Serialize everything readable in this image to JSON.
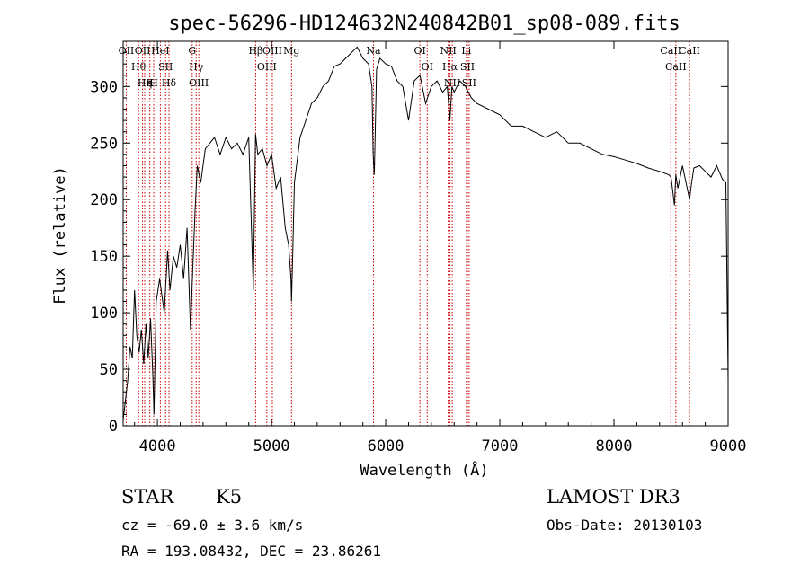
{
  "chart_data": {
    "type": "line",
    "title": "spec-56296-HD124632N240842B01_sp08-089.fits",
    "xlabel": "Wavelength (Å)",
    "ylabel": "Flux (relative)",
    "xlim": [
      3700,
      9000
    ],
    "ylim": [
      0,
      340
    ],
    "x_ticks": [
      4000,
      5000,
      6000,
      7000,
      8000,
      9000
    ],
    "y_ticks": [
      0,
      50,
      100,
      150,
      200,
      250,
      300
    ],
    "grid": false,
    "legend": "none",
    "line_color": "#000000",
    "marker_color": "#cc0000",
    "series": [
      {
        "x": [
          3700,
          3740,
          3760,
          3780,
          3800,
          3820,
          3840,
          3860,
          3880,
          3900,
          3920,
          3940,
          3960,
          3970,
          3990,
          4020,
          4060,
          4090,
          4110,
          4140,
          4170,
          4200,
          4230,
          4260,
          4290,
          4310,
          4330,
          4350,
          4380,
          4420,
          4460,
          4500,
          4550,
          4600,
          4650,
          4700,
          4750,
          4800,
          4840,
          4860,
          4880,
          4920,
          4960,
          5000,
          5040,
          5080,
          5120,
          5150,
          5170,
          5175,
          5185,
          5200,
          5250,
          5300,
          5350,
          5400,
          5450,
          5500,
          5550,
          5600,
          5650,
          5700,
          5750,
          5800,
          5850,
          5880,
          5890,
          5900,
          5920,
          5950,
          6000,
          6050,
          6100,
          6150,
          6200,
          6250,
          6300,
          6350,
          6400,
          6450,
          6500,
          6540,
          6563,
          6580,
          6600,
          6650,
          6700,
          6750,
          6800,
          6900,
          7000,
          7100,
          7200,
          7300,
          7400,
          7500,
          7600,
          7700,
          7800,
          7900,
          8000,
          8100,
          8200,
          8300,
          8400,
          8480,
          8500,
          8530,
          8542,
          8560,
          8600,
          8662,
          8680,
          8700,
          8750,
          8800,
          8850,
          8900,
          8950,
          8980,
          9000
        ],
        "y": [
          5,
          40,
          70,
          60,
          120,
          80,
          65,
          85,
          55,
          90,
          60,
          95,
          45,
          10,
          110,
          130,
          100,
          155,
          120,
          150,
          140,
          160,
          130,
          175,
          85,
          140,
          190,
          230,
          215,
          245,
          250,
          255,
          240,
          255,
          245,
          250,
          240,
          255,
          120,
          258,
          240,
          245,
          230,
          240,
          210,
          220,
          175,
          160,
          130,
          110,
          150,
          215,
          255,
          270,
          285,
          290,
          300,
          305,
          318,
          320,
          325,
          330,
          335,
          325,
          320,
          300,
          240,
          222,
          315,
          325,
          320,
          318,
          305,
          300,
          270,
          305,
          310,
          285,
          300,
          305,
          295,
          300,
          270,
          300,
          295,
          305,
          300,
          290,
          285,
          280,
          275,
          265,
          265,
          260,
          255,
          260,
          250,
          250,
          245,
          240,
          238,
          235,
          232,
          228,
          225,
          222,
          220,
          195,
          222,
          210,
          230,
          200,
          215,
          228,
          230,
          225,
          220,
          230,
          218,
          215,
          40
        ]
      }
    ],
    "line_markers": [
      {
        "wavelength": 3727,
        "label": "OII"
      },
      {
        "wavelength": 3835,
        "label": "Hθ"
      },
      {
        "wavelength": 3870,
        "label": "OII"
      },
      {
        "wavelength": 3889,
        "label": "Hη"
      },
      {
        "wavelength": 3934,
        "label": "K"
      },
      {
        "wavelength": 3968,
        "label": "H"
      },
      {
        "wavelength": 4026,
        "label": "HeI"
      },
      {
        "wavelength": 4072,
        "label": "SII"
      },
      {
        "wavelength": 4102,
        "label": "Hδ"
      },
      {
        "wavelength": 4305,
        "label": "G"
      },
      {
        "wavelength": 4340,
        "label": "Hγ"
      },
      {
        "wavelength": 4363,
        "label": "OIII"
      },
      {
        "wavelength": 4861,
        "label": "Hβ"
      },
      {
        "wavelength": 4959,
        "label": "OIII"
      },
      {
        "wavelength": 5007,
        "label": "OIII"
      },
      {
        "wavelength": 5175,
        "label": "Mg"
      },
      {
        "wavelength": 5893,
        "label": "Na"
      },
      {
        "wavelength": 6300,
        "label": "OI"
      },
      {
        "wavelength": 6364,
        "label": "OI"
      },
      {
        "wavelength": 6548,
        "label": "NII"
      },
      {
        "wavelength": 6563,
        "label": "Hα"
      },
      {
        "wavelength": 6583,
        "label": "NII"
      },
      {
        "wavelength": 6707,
        "label": "Li"
      },
      {
        "wavelength": 6716,
        "label": "SII"
      },
      {
        "wavelength": 6731,
        "label": "SII"
      },
      {
        "wavelength": 8498,
        "label": "CaII"
      },
      {
        "wavelength": 8542,
        "label": "CaII"
      },
      {
        "wavelength": 8662,
        "label": "CaII"
      }
    ]
  },
  "info": {
    "class": "STAR",
    "subclass": "K5",
    "survey": "LAMOST DR3",
    "cz": "cz = -69.0 ± 3.6 km/s",
    "obs_date": "Obs-Date: 20130103",
    "coords": "RA = 193.08432, DEC =  23.86261"
  }
}
